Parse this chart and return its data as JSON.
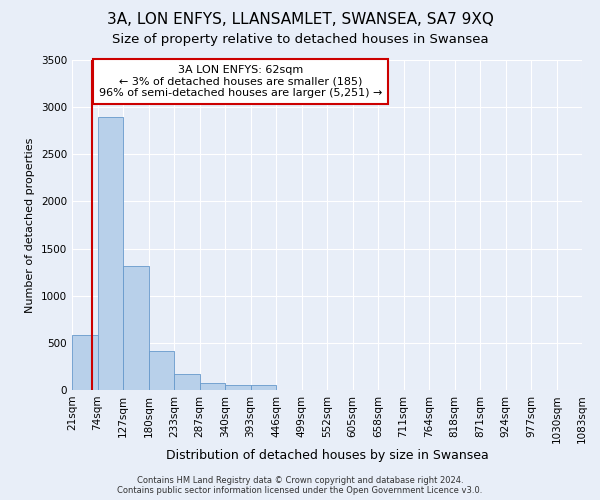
{
  "title": "3A, LON ENFYS, LLANSAMLET, SWANSEA, SA7 9XQ",
  "subtitle": "Size of property relative to detached houses in Swansea",
  "xlabel": "Distribution of detached houses by size in Swansea",
  "ylabel": "Number of detached properties",
  "bar_values": [
    580,
    2900,
    1320,
    410,
    175,
    75,
    55,
    50,
    0,
    0,
    0,
    0,
    0,
    0,
    0,
    0,
    0,
    0,
    0,
    0
  ],
  "bar_labels": [
    "21sqm",
    "74sqm",
    "127sqm",
    "180sqm",
    "233sqm",
    "287sqm",
    "340sqm",
    "393sqm",
    "446sqm",
    "499sqm",
    "552sqm",
    "605sqm",
    "658sqm",
    "711sqm",
    "764sqm",
    "818sqm",
    "871sqm",
    "924sqm",
    "977sqm",
    "1030sqm",
    "1083sqm"
  ],
  "bar_color": "#b8d0ea",
  "bar_edge_color": "#6699cc",
  "bg_color": "#e8eef8",
  "grid_color": "#ffffff",
  "annotation_text": "3A LON ENFYS: 62sqm\n← 3% of detached houses are smaller (185)\n96% of semi-detached houses are larger (5,251) →",
  "annotation_box_color": "#ffffff",
  "annotation_box_edge": "#cc0000",
  "red_line_color": "#cc0000",
  "ylim": [
    0,
    3500
  ],
  "footer_line1": "Contains HM Land Registry data © Crown copyright and database right 2024.",
  "footer_line2": "Contains public sector information licensed under the Open Government Licence v3.0.",
  "title_fontsize": 11,
  "subtitle_fontsize": 9.5,
  "tick_fontsize": 7.5,
  "ylabel_fontsize": 8,
  "xlabel_fontsize": 9
}
